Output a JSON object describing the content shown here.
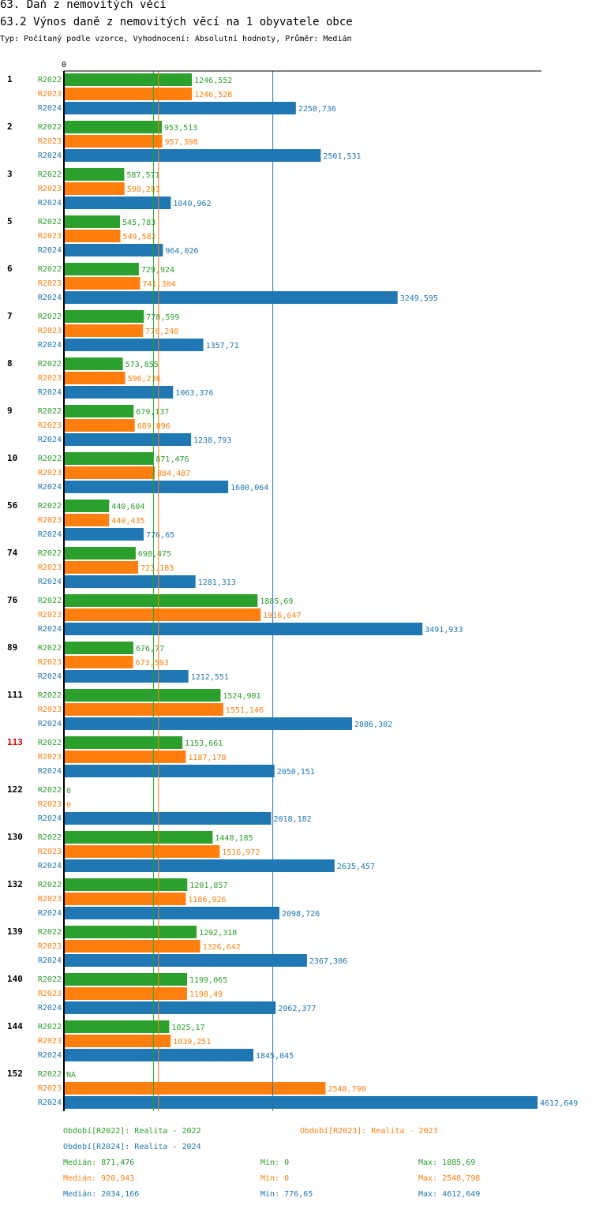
{
  "title": "63. Daň z nemovitých věcí",
  "subtitle": "63.2 Výnos daně z nemovitých věcí na 1 obyvatele obce",
  "type_line": "Typ: Počítaný podle vzorce, Vyhodnocení: Absolutní hodnoty, Průměr: Medián",
  "colors": {
    "R2022": "#2ca02c",
    "R2023": "#ff7f0e",
    "R2024": "#1f77b4",
    "highlight": "#dd0000",
    "axis": "#000000"
  },
  "chart_data": {
    "type": "bar",
    "orientation": "horizontal",
    "axis_zero_label": "0",
    "xlim": [
      0,
      4612.649
    ],
    "series_names": [
      "R2022",
      "R2023",
      "R2024"
    ],
    "highlight_category": "113",
    "categories": [
      {
        "label": "1",
        "values": [
          1246.552,
          1246.528,
          2258.736
        ],
        "labels": [
          "1246,552",
          "1246,528",
          "2258,736"
        ]
      },
      {
        "label": "2",
        "values": [
          953.513,
          957.398,
          2501.531
        ],
        "labels": [
          "953,513",
          "957,398",
          "2501,531"
        ]
      },
      {
        "label": "3",
        "values": [
          587.571,
          590.281,
          1040.962
        ],
        "labels": [
          "587,571",
          "590,281",
          "1040,962"
        ]
      },
      {
        "label": "5",
        "values": [
          545.783,
          549.582,
          964.026
        ],
        "labels": [
          "545,783",
          "549,582",
          "964,026"
        ]
      },
      {
        "label": "6",
        "values": [
          729.924,
          741.304,
          3249.595
        ],
        "labels": [
          "729,924",
          "741,304",
          "3249,595"
        ]
      },
      {
        "label": "7",
        "values": [
          778.599,
          770.248,
          1357.71
        ],
        "labels": [
          "778,599",
          "770,248",
          "1357,71"
        ]
      },
      {
        "label": "8",
        "values": [
          573.855,
          596.236,
          1063.376
        ],
        "labels": [
          "573,855",
          "596,236",
          "1063,376"
        ]
      },
      {
        "label": "9",
        "values": [
          679.137,
          689.896,
          1238.793
        ],
        "labels": [
          "679,137",
          "689,896",
          "1238,793"
        ]
      },
      {
        "label": "10",
        "values": [
          871.476,
          884.487,
          1600.064
        ],
        "labels": [
          "871,476",
          "884,487",
          "1600,064"
        ]
      },
      {
        "label": "56",
        "values": [
          440.604,
          440.435,
          776.65
        ],
        "labels": [
          "440,604",
          "440,435",
          "776,65"
        ]
      },
      {
        "label": "74",
        "values": [
          698.475,
          723.183,
          1281.313
        ],
        "labels": [
          "698,475",
          "723,183",
          "1281,313"
        ]
      },
      {
        "label": "76",
        "values": [
          1885.69,
          1916.647,
          3491.933
        ],
        "labels": [
          "1885,69",
          "1916,647",
          "3491,933"
        ]
      },
      {
        "label": "89",
        "values": [
          676.77,
          673.593,
          1212.551
        ],
        "labels": [
          "676,77",
          "673,593",
          "1212,551"
        ]
      },
      {
        "label": "111",
        "values": [
          1524.901,
          1551.146,
          2806.302
        ],
        "labels": [
          "1524,901",
          "1551,146",
          "2806,302"
        ]
      },
      {
        "label": "113",
        "values": [
          1153.661,
          1187.178,
          2050.151
        ],
        "labels": [
          "1153,661",
          "1187,178",
          "2050,151"
        ]
      },
      {
        "label": "122",
        "values": [
          0,
          0,
          2018.182
        ],
        "labels": [
          "0",
          "0",
          "2018,182"
        ]
      },
      {
        "label": "130",
        "values": [
          1448.185,
          1516.972,
          2635.457
        ],
        "labels": [
          "1448,185",
          "1516,972",
          "2635,457"
        ]
      },
      {
        "label": "132",
        "values": [
          1201.857,
          1186.926,
          2098.726
        ],
        "labels": [
          "1201,857",
          "1186,926",
          "2098,726"
        ]
      },
      {
        "label": "139",
        "values": [
          1292.318,
          1326.642,
          2367.306
        ],
        "labels": [
          "1292,318",
          "1326,642",
          "2367,306"
        ]
      },
      {
        "label": "140",
        "values": [
          1199.065,
          1198.49,
          2062.377
        ],
        "labels": [
          "1199,065",
          "1198,49",
          "2062,377"
        ]
      },
      {
        "label": "144",
        "values": [
          1025.17,
          1039.251,
          1845.045
        ],
        "labels": [
          "1025,17",
          "1039,251",
          "1845,045"
        ]
      },
      {
        "label": "152",
        "values": [
          null,
          2548.798,
          4612.649
        ],
        "labels": [
          "NA",
          "2548,798",
          "4612,649"
        ]
      }
    ],
    "medians": [
      871.476,
      920.943,
      2034.166
    ]
  },
  "legend": {
    "period_2022": "Období[R2022]: Realita - 2022",
    "period_2023": "Období[R2023]: Realita - 2023",
    "period_2024": "Období[R2024]: Realita - 2024",
    "stats": [
      {
        "median": "Medián: 871,476",
        "min": "Min: 0",
        "max": "Max: 1885,69"
      },
      {
        "median": "Medián: 920,943",
        "min": "Min: 0",
        "max": "Max: 2548,798"
      },
      {
        "median": "Medián: 2034,166",
        "min": "Min: 776,65",
        "max": "Max: 4612,649"
      }
    ]
  }
}
